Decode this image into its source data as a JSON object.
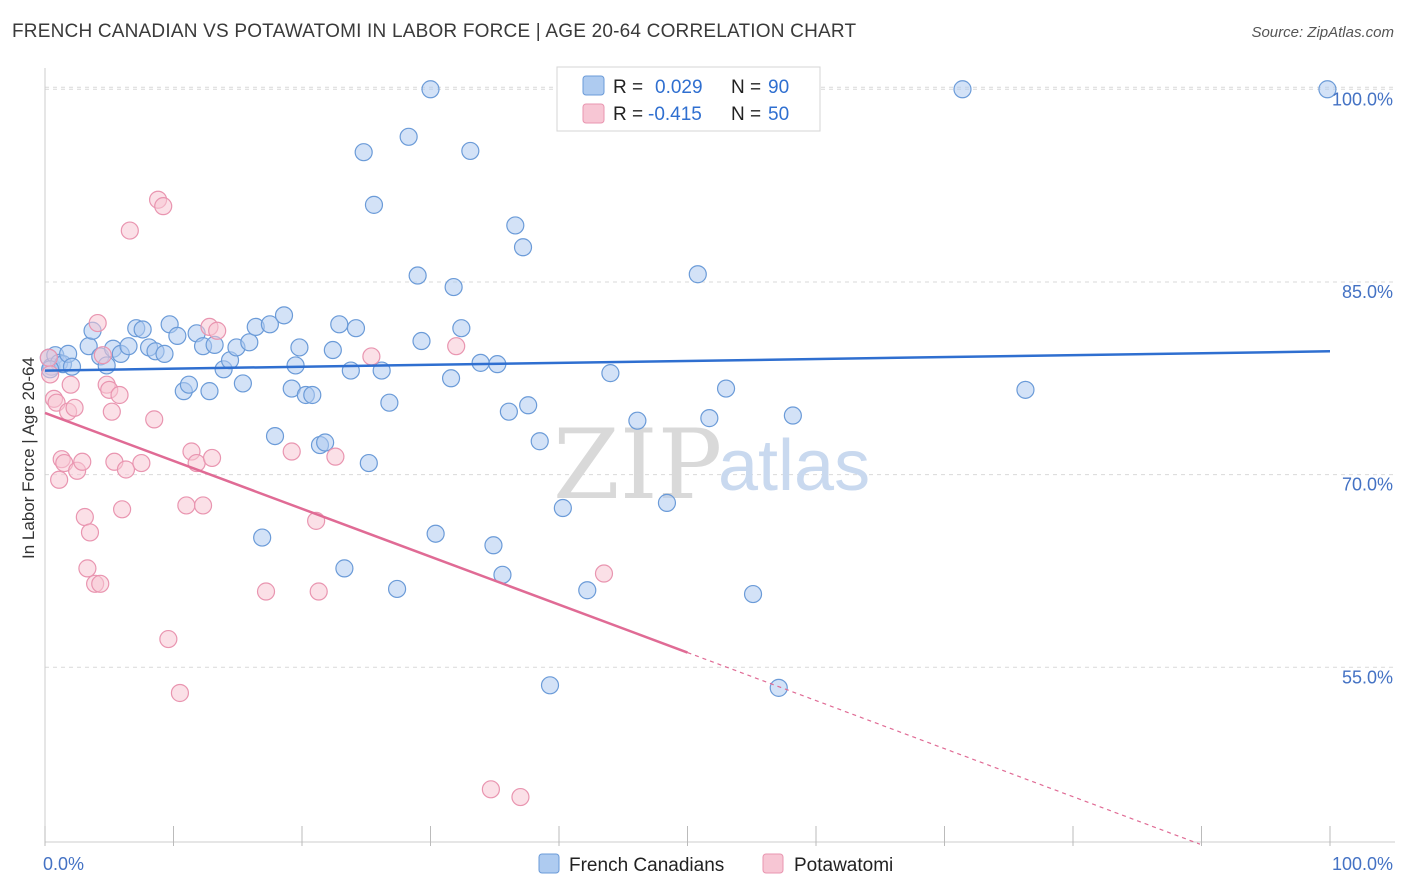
{
  "title": "FRENCH CANADIAN VS POTAWATOMI IN LABOR FORCE | AGE 20-64 CORRELATION CHART",
  "source": "Source: ZipAtlas.com",
  "watermark": {
    "zip": "ZIP",
    "atlas": "atlas"
  },
  "colors": {
    "blue_fill": "#aecbf0",
    "blue_stroke": "#6b9bd8",
    "blue_line": "#2f6fd0",
    "pink_fill": "#f7c6d4",
    "pink_stroke": "#e995b0",
    "pink_line": "#e06b95",
    "grid": "#d9d9d9",
    "axis_text": "#4472c4"
  },
  "legend": {
    "rows": [
      {
        "r_label": "R =",
        "r_value": "0.029",
        "n_label": "N =",
        "n_value": "90"
      },
      {
        "r_label": "R =",
        "r_value": "-0.415",
        "n_label": "N =",
        "n_value": "50"
      }
    ]
  },
  "bottom_legend": [
    "French Canadians",
    "Potawatomi"
  ],
  "chart_data": {
    "type": "scatter",
    "title": "FRENCH CANADIAN VS POTAWATOMI IN LABOR FORCE | AGE 20-64 CORRELATION CHART",
    "xlabel": "",
    "ylabel": "In Labor Force | Age 20-64",
    "xlim": [
      0,
      100
    ],
    "ylim": [
      41.4,
      101.5
    ],
    "x_tick_labels": [
      "0.0%",
      "100.0%"
    ],
    "y_ticks": [
      55,
      70,
      85,
      100
    ],
    "y_tick_labels": [
      "55.0%",
      "70.0%",
      "85.0%",
      "100.0%"
    ],
    "grid": true,
    "series": [
      {
        "name": "French Canadians",
        "color": "blue",
        "trend": {
          "x": [
            0,
            100
          ],
          "y": [
            78.1,
            79.6
          ],
          "solid_to": 100
        },
        "points": [
          [
            0.3,
            79.1
          ],
          [
            0.5,
            78.4
          ],
          [
            0.8,
            79.3
          ],
          [
            1.1,
            78.7
          ],
          [
            1.4,
            78.6
          ],
          [
            1.8,
            79.4
          ],
          [
            2.1,
            78.4
          ],
          [
            3.4,
            80.0
          ],
          [
            3.7,
            81.2
          ],
          [
            4.3,
            79.2
          ],
          [
            4.8,
            78.5
          ],
          [
            5.3,
            79.8
          ],
          [
            5.9,
            79.4
          ],
          [
            6.5,
            80.0
          ],
          [
            7.1,
            81.4
          ],
          [
            7.6,
            81.3
          ],
          [
            8.1,
            79.9
          ],
          [
            8.6,
            79.6
          ],
          [
            9.3,
            79.4
          ],
          [
            9.7,
            81.7
          ],
          [
            10.3,
            80.8
          ],
          [
            10.8,
            76.5
          ],
          [
            11.2,
            77.0
          ],
          [
            11.8,
            81.0
          ],
          [
            12.3,
            80.0
          ],
          [
            12.8,
            76.5
          ],
          [
            13.2,
            80.1
          ],
          [
            13.9,
            78.2
          ],
          [
            14.4,
            78.9
          ],
          [
            14.9,
            79.9
          ],
          [
            15.4,
            77.1
          ],
          [
            15.9,
            80.3
          ],
          [
            16.4,
            81.5
          ],
          [
            16.9,
            65.1
          ],
          [
            17.5,
            81.7
          ],
          [
            17.9,
            73.0
          ],
          [
            18.6,
            82.4
          ],
          [
            19.2,
            76.7
          ],
          [
            19.5,
            78.5
          ],
          [
            19.8,
            79.9
          ],
          [
            20.3,
            76.2
          ],
          [
            20.8,
            76.2
          ],
          [
            21.4,
            72.3
          ],
          [
            21.8,
            72.5
          ],
          [
            22.4,
            79.7
          ],
          [
            22.9,
            81.7
          ],
          [
            23.3,
            62.7
          ],
          [
            23.8,
            78.1
          ],
          [
            24.2,
            81.4
          ],
          [
            24.8,
            95.1
          ],
          [
            25.2,
            70.9
          ],
          [
            25.6,
            91.0
          ],
          [
            26.2,
            78.1
          ],
          [
            26.8,
            75.6
          ],
          [
            27.4,
            61.1
          ],
          [
            28.3,
            96.3
          ],
          [
            29.0,
            85.5
          ],
          [
            29.3,
            80.4
          ],
          [
            30.0,
            100.0
          ],
          [
            30.4,
            65.4
          ],
          [
            31.6,
            77.5
          ],
          [
            31.8,
            84.6
          ],
          [
            32.4,
            81.4
          ],
          [
            33.1,
            95.2
          ],
          [
            33.9,
            78.7
          ],
          [
            34.9,
            64.5
          ],
          [
            35.2,
            78.6
          ],
          [
            35.6,
            62.2
          ],
          [
            36.1,
            74.9
          ],
          [
            36.6,
            89.4
          ],
          [
            37.2,
            87.7
          ],
          [
            37.6,
            75.4
          ],
          [
            38.5,
            72.6
          ],
          [
            39.3,
            53.6
          ],
          [
            40.3,
            67.4
          ],
          [
            40.9,
            100.0
          ],
          [
            42.2,
            61.0
          ],
          [
            44.0,
            77.9
          ],
          [
            46.1,
            74.2
          ],
          [
            48.4,
            67.8
          ],
          [
            50.8,
            85.6
          ],
          [
            51.7,
            74.4
          ],
          [
            53.0,
            76.7
          ],
          [
            55.1,
            60.7
          ],
          [
            57.1,
            53.4
          ],
          [
            58.2,
            74.6
          ],
          [
            71.4,
            100.0
          ],
          [
            76.3,
            76.6
          ],
          [
            99.8,
            100.0
          ],
          [
            0.4,
            78.2
          ]
        ]
      },
      {
        "name": "Potawatomi",
        "color": "pink",
        "trend": {
          "x": [
            0,
            100
          ],
          "y": [
            74.8,
            37.5
          ],
          "solid_to": 50
        },
        "points": [
          [
            0.3,
            79.1
          ],
          [
            0.4,
            77.8
          ],
          [
            0.7,
            75.9
          ],
          [
            0.9,
            75.6
          ],
          [
            1.1,
            69.6
          ],
          [
            1.3,
            71.2
          ],
          [
            1.5,
            70.9
          ],
          [
            1.8,
            74.9
          ],
          [
            2.0,
            77.0
          ],
          [
            2.3,
            75.2
          ],
          [
            2.5,
            70.3
          ],
          [
            2.9,
            71.0
          ],
          [
            3.1,
            66.7
          ],
          [
            3.3,
            62.7
          ],
          [
            3.5,
            65.5
          ],
          [
            3.9,
            61.5
          ],
          [
            4.1,
            81.8
          ],
          [
            4.3,
            61.5
          ],
          [
            4.5,
            79.3
          ],
          [
            4.8,
            77.0
          ],
          [
            5.0,
            76.6
          ],
          [
            5.2,
            74.9
          ],
          [
            5.4,
            71.0
          ],
          [
            5.8,
            76.2
          ],
          [
            6.0,
            67.3
          ],
          [
            6.3,
            70.4
          ],
          [
            6.6,
            89.0
          ],
          [
            7.5,
            70.9
          ],
          [
            8.5,
            74.3
          ],
          [
            8.8,
            91.4
          ],
          [
            9.2,
            90.9
          ],
          [
            9.6,
            57.2
          ],
          [
            10.5,
            53.0
          ],
          [
            11.0,
            67.6
          ],
          [
            11.4,
            71.8
          ],
          [
            11.8,
            70.9
          ],
          [
            12.3,
            67.6
          ],
          [
            12.8,
            81.5
          ],
          [
            13.0,
            71.3
          ],
          [
            17.2,
            60.9
          ],
          [
            19.2,
            71.8
          ],
          [
            21.1,
            66.4
          ],
          [
            21.3,
            60.9
          ],
          [
            22.6,
            71.4
          ],
          [
            25.4,
            79.2
          ],
          [
            32.0,
            80.0
          ],
          [
            34.7,
            45.5
          ],
          [
            37.0,
            44.9
          ],
          [
            43.5,
            62.3
          ],
          [
            13.4,
            81.2
          ]
        ]
      }
    ]
  }
}
